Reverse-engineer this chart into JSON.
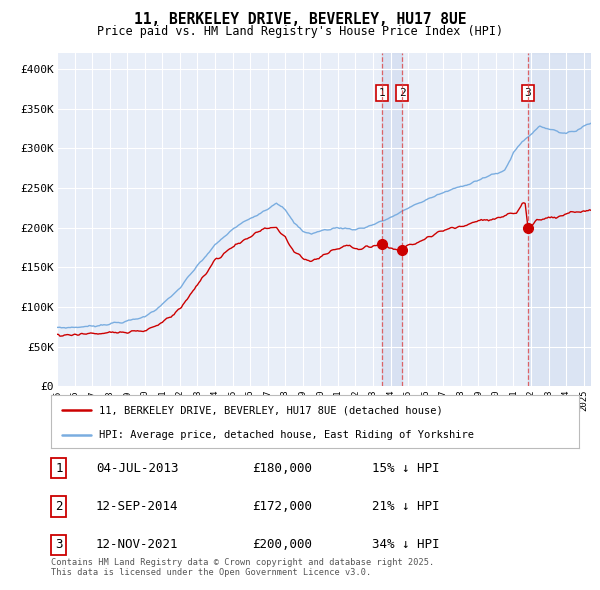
{
  "title": "11, BERKELEY DRIVE, BEVERLEY, HU17 8UE",
  "subtitle": "Price paid vs. HM Land Registry's House Price Index (HPI)",
  "legend_label_red": "11, BERKELEY DRIVE, BEVERLEY, HU17 8UE (detached house)",
  "legend_label_blue": "HPI: Average price, detached house, East Riding of Yorkshire",
  "transaction_dates": [
    "04-JUL-2013",
    "12-SEP-2014",
    "12-NOV-2021"
  ],
  "transaction_prices": [
    "£180,000",
    "£172,000",
    "£200,000"
  ],
  "transaction_hpi": [
    "15% ↓ HPI",
    "21% ↓ HPI",
    "34% ↓ HPI"
  ],
  "sale_values": [
    180000,
    172000,
    200000
  ],
  "red_line_color": "#cc0000",
  "blue_line_color": "#7aade0",
  "vline_red_color": "#dd4444",
  "vline_blue_color": "#9999bb",
  "span_color": "#ccd8ee",
  "footer": "Contains HM Land Registry data © Crown copyright and database right 2025.\nThis data is licensed under the Open Government Licence v3.0.",
  "ylim": [
    0,
    420000
  ],
  "yticks": [
    0,
    50000,
    100000,
    150000,
    200000,
    250000,
    300000,
    350000,
    400000
  ],
  "ytick_labels": [
    "£0",
    "£50K",
    "£100K",
    "£150K",
    "£200K",
    "£250K",
    "£300K",
    "£350K",
    "£400K"
  ],
  "plot_bg_color": "#e8eef8",
  "fig_bg_color": "#ffffff",
  "grid_color": "#ffffff",
  "year_start": 1995,
  "year_end": 2025,
  "sale1_year": 2013,
  "sale1_month": 7,
  "sale2_year": 2014,
  "sale2_month": 9,
  "sale3_year": 2021,
  "sale3_month": 11
}
